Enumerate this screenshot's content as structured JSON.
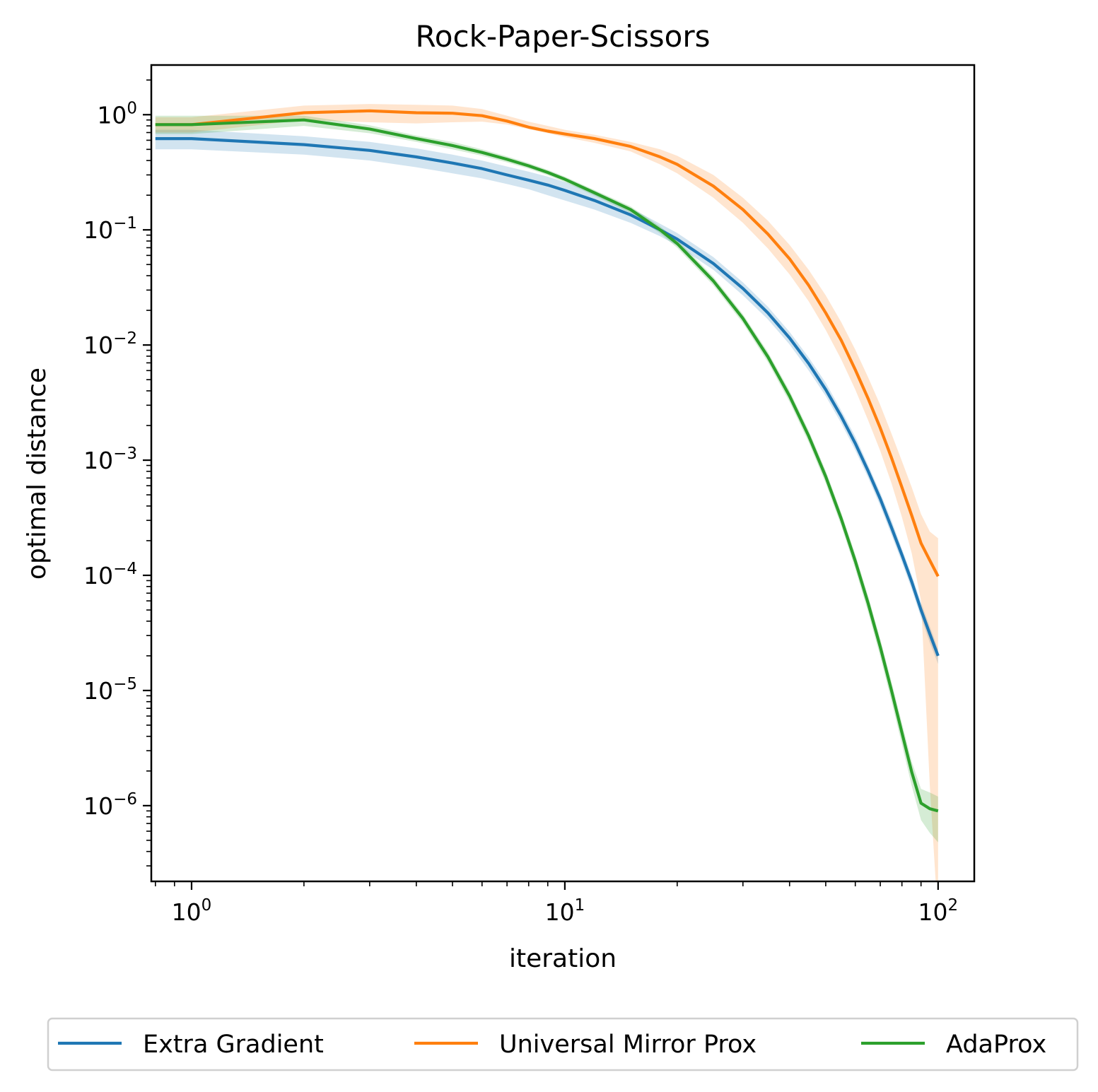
{
  "chart_data": {
    "type": "line",
    "title": "Rock-Paper-Scissors",
    "xlabel": "iteration",
    "ylabel": "optimal distance",
    "xscale": "log",
    "yscale": "log",
    "xlim": [
      0.78,
      125
    ],
    "ylim": [
      2.2e-07,
      2.7
    ],
    "grid": false,
    "legend_position": "bottom-center",
    "x_ticks": [
      {
        "base": "10",
        "exp": "0",
        "value": 1
      },
      {
        "base": "10",
        "exp": "1",
        "value": 10
      },
      {
        "base": "10",
        "exp": "2",
        "value": 100
      }
    ],
    "y_ticks": [
      {
        "base": "10",
        "exp": "0",
        "value": 1
      },
      {
        "base": "10",
        "exp": "−1",
        "value": 0.1
      },
      {
        "base": "10",
        "exp": "−2",
        "value": 0.01
      },
      {
        "base": "10",
        "exp": "−3",
        "value": 0.001
      },
      {
        "base": "10",
        "exp": "−4",
        "value": 0.0001
      },
      {
        "base": "10",
        "exp": "−5",
        "value": 1e-05
      },
      {
        "base": "10",
        "exp": "−6",
        "value": 1e-06
      }
    ],
    "x": [
      0.8,
      1,
      2,
      3,
      4,
      5,
      6,
      7,
      8,
      9,
      10,
      12,
      15,
      18,
      20,
      25,
      30,
      35,
      40,
      45,
      50,
      55,
      60,
      65,
      70,
      75,
      80,
      85,
      90,
      95,
      100
    ],
    "series": [
      {
        "name": "Extra Gradient",
        "color": "#1f77b4",
        "values": [
          0.62,
          0.62,
          0.55,
          0.49,
          0.43,
          0.38,
          0.34,
          0.3,
          0.27,
          0.245,
          0.22,
          0.18,
          0.135,
          0.1,
          0.083,
          0.051,
          0.031,
          0.019,
          0.0115,
          0.0069,
          0.0041,
          0.0024,
          0.0014,
          0.0008,
          0.00046,
          0.00026,
          0.00015,
          8.75e-05,
          5e-05,
          3.1e-05,
          2e-05
        ],
        "band_low": [
          0.5,
          0.5,
          0.45,
          0.4,
          0.35,
          0.31,
          0.28,
          0.25,
          0.225,
          0.2,
          0.18,
          0.15,
          0.115,
          0.088,
          0.073,
          0.045,
          0.027,
          0.0167,
          0.0101,
          0.006,
          0.0036,
          0.0021,
          0.00122,
          0.0007,
          0.0004,
          0.000225,
          0.00013,
          7.55e-05,
          4.3e-05,
          2.6e-05,
          1.7e-05
        ],
        "band_high": [
          0.74,
          0.74,
          0.65,
          0.58,
          0.51,
          0.45,
          0.4,
          0.355,
          0.32,
          0.29,
          0.26,
          0.21,
          0.155,
          0.113,
          0.094,
          0.058,
          0.035,
          0.0215,
          0.013,
          0.0078,
          0.0047,
          0.0027,
          0.0016,
          0.0009,
          0.00052,
          0.0003,
          0.00017,
          0.0001,
          5.8e-05,
          3.6e-05,
          2.3e-05
        ]
      },
      {
        "name": "Universal Mirror Prox",
        "color": "#ff7f0e",
        "values": [
          0.82,
          0.82,
          1.04,
          1.08,
          1.04,
          1.03,
          0.98,
          0.88,
          0.78,
          0.72,
          0.68,
          0.62,
          0.53,
          0.43,
          0.37,
          0.24,
          0.15,
          0.092,
          0.056,
          0.033,
          0.019,
          0.011,
          0.0061,
          0.0034,
          0.0019,
          0.00105,
          0.00058,
          0.00033,
          0.00019,
          0.000135,
          9.8e-05
        ],
        "band_low": [
          0.7,
          0.7,
          0.9,
          0.86,
          0.84,
          0.86,
          0.87,
          0.82,
          0.75,
          0.69,
          0.64,
          0.57,
          0.48,
          0.37,
          0.31,
          0.19,
          0.115,
          0.069,
          0.041,
          0.024,
          0.0135,
          0.0075,
          0.0041,
          0.0022,
          0.0012,
          0.00063,
          0.00032,
          0.000155,
          6e-05,
          1.5e-06,
          1e-07
        ],
        "band_high": [
          0.95,
          0.95,
          1.2,
          1.24,
          1.22,
          1.2,
          1.12,
          0.98,
          0.87,
          0.8,
          0.74,
          0.67,
          0.58,
          0.5,
          0.44,
          0.3,
          0.19,
          0.12,
          0.074,
          0.045,
          0.027,
          0.0158,
          0.0091,
          0.0052,
          0.003,
          0.0017,
          0.00098,
          0.00058,
          0.00034,
          0.00024,
          0.00021
        ]
      },
      {
        "name": "AdaProx",
        "color": "#2ca02c",
        "values": [
          0.82,
          0.82,
          0.9,
          0.75,
          0.62,
          0.54,
          0.47,
          0.41,
          0.36,
          0.315,
          0.275,
          0.21,
          0.15,
          0.1,
          0.076,
          0.036,
          0.017,
          0.0079,
          0.0036,
          0.00162,
          0.00072,
          0.00031,
          0.000133,
          5.65e-05,
          2.38e-05,
          1e-05,
          4.3e-06,
          1.95e-06,
          1.05e-06,
          9.4e-07,
          9e-07
        ],
        "band_low": [
          0.68,
          0.68,
          0.8,
          0.69,
          0.58,
          0.5,
          0.44,
          0.385,
          0.34,
          0.298,
          0.26,
          0.198,
          0.14,
          0.093,
          0.07,
          0.033,
          0.0155,
          0.0071,
          0.0032,
          0.00143,
          0.00063,
          0.00027,
          0.000114,
          4.75e-05,
          1.97e-05,
          8.1e-06,
          3.4e-06,
          1.48e-06,
          7.5e-07,
          5.8e-07,
          4.8e-07
        ],
        "band_high": [
          0.98,
          0.98,
          0.98,
          0.81,
          0.66,
          0.58,
          0.5,
          0.435,
          0.38,
          0.332,
          0.29,
          0.222,
          0.16,
          0.107,
          0.082,
          0.039,
          0.0185,
          0.0087,
          0.004,
          0.00181,
          0.00081,
          0.00035,
          0.000152,
          6.55e-05,
          2.79e-05,
          1.19e-05,
          5.2e-06,
          2.4e-06,
          1.4e-06,
          1.3e-06,
          1.2e-06
        ]
      }
    ]
  }
}
